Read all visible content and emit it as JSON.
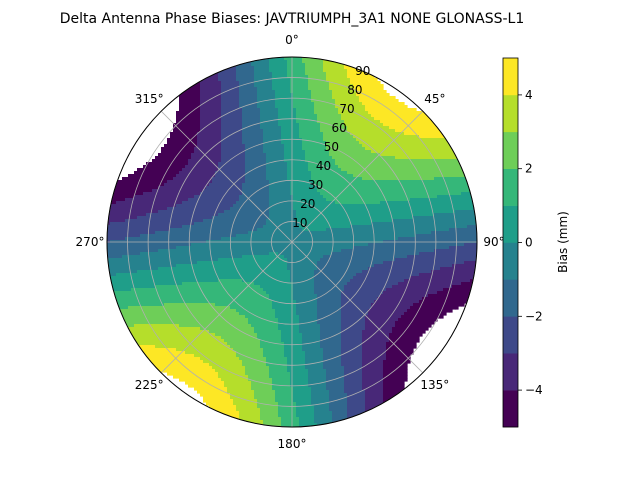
{
  "chart_data": {
    "type": "heatmap",
    "subtype": "polar-contour",
    "title": "Delta Antenna Phase Biases: JAVTRIUMPH_3A1  NONE GLONASS-L1",
    "angle_ticks": [
      {
        "deg": 0,
        "label": "0°"
      },
      {
        "deg": 45,
        "label": "45°"
      },
      {
        "deg": 90,
        "label": "90°"
      },
      {
        "deg": 135,
        "label": "135°"
      },
      {
        "deg": 180,
        "label": "180°"
      },
      {
        "deg": 225,
        "label": "225°"
      },
      {
        "deg": 270,
        "label": "270°"
      },
      {
        "deg": 315,
        "label": "315°"
      }
    ],
    "radial_ticks": [
      10,
      20,
      30,
      40,
      50,
      60,
      70,
      80,
      90
    ],
    "radial_labels": [
      "10",
      "20",
      "30",
      "40",
      "50",
      "60",
      "70",
      "80",
      "90"
    ],
    "rlim": [
      0,
      90
    ],
    "direction": "clockwise",
    "zero_location": "top",
    "grid": true,
    "colorbar": {
      "label": "Bias (mm)",
      "vmin": -5,
      "vmax": 5,
      "levels": [
        -5,
        -4,
        -3,
        -2,
        -1,
        0,
        1,
        2,
        3,
        4,
        5
      ],
      "tick_values": [
        -4,
        -2,
        0,
        2,
        4
      ],
      "tick_labels": [
        "−4",
        "−2",
        "0",
        "2",
        "4"
      ],
      "colors": [
        "#440154",
        "#482878",
        "#3e4989",
        "#31688e",
        "#26828e",
        "#1f9e89",
        "#35b779",
        "#6ece58",
        "#b5de2b",
        "#fde725"
      ]
    },
    "masked_value": "white"
  }
}
